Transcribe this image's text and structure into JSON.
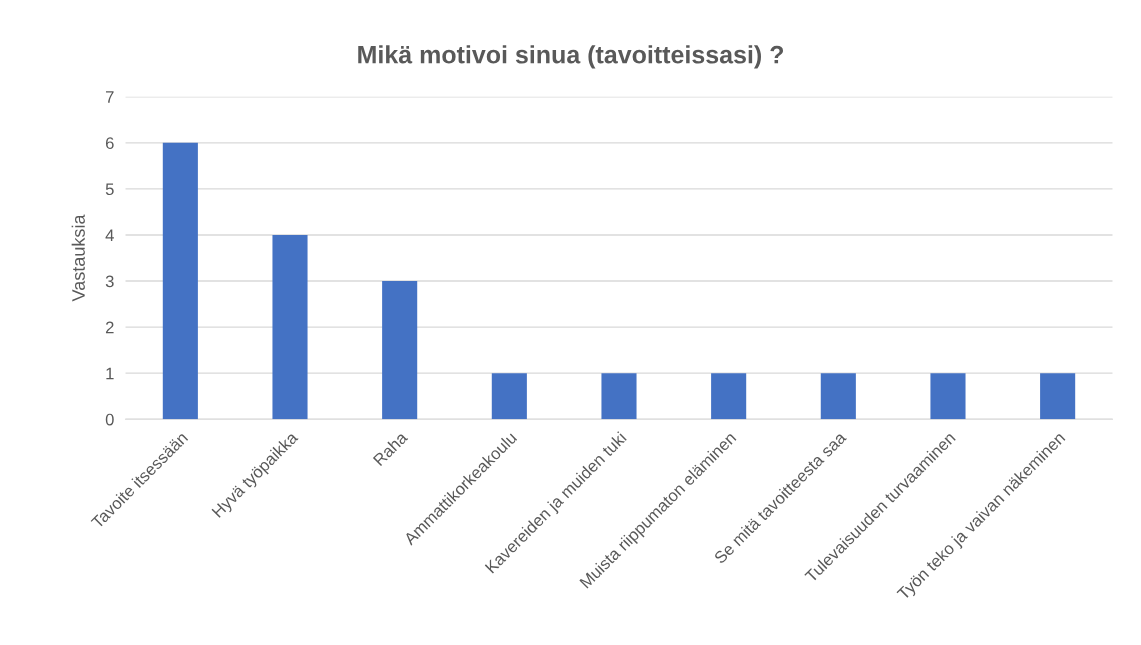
{
  "chart_data": {
    "type": "bar",
    "title": "Mikä motivoi sinua (tavoitteissasi) ?",
    "ylabel": "Vastauksia",
    "categories": [
      "Tavoite itsessään",
      "Hyvä työpaikka",
      "Raha",
      "Ammattikorkeakoulu",
      "Kavereiden ja muiden tuki",
      "Muista riippumaton eläminen",
      "Se mitä tavoitteesta saa",
      "Tulevaisuuden turvaaminen",
      "Työn teko ja vaivan näkeminen"
    ],
    "values": [
      6,
      4,
      3,
      1,
      1,
      1,
      1,
      1,
      1
    ],
    "color": "#4472c4",
    "ylim": [
      0,
      7
    ],
    "yticks": [
      0,
      1,
      2,
      3,
      4,
      5,
      6,
      7
    ],
    "grid": "y",
    "legend": false
  }
}
